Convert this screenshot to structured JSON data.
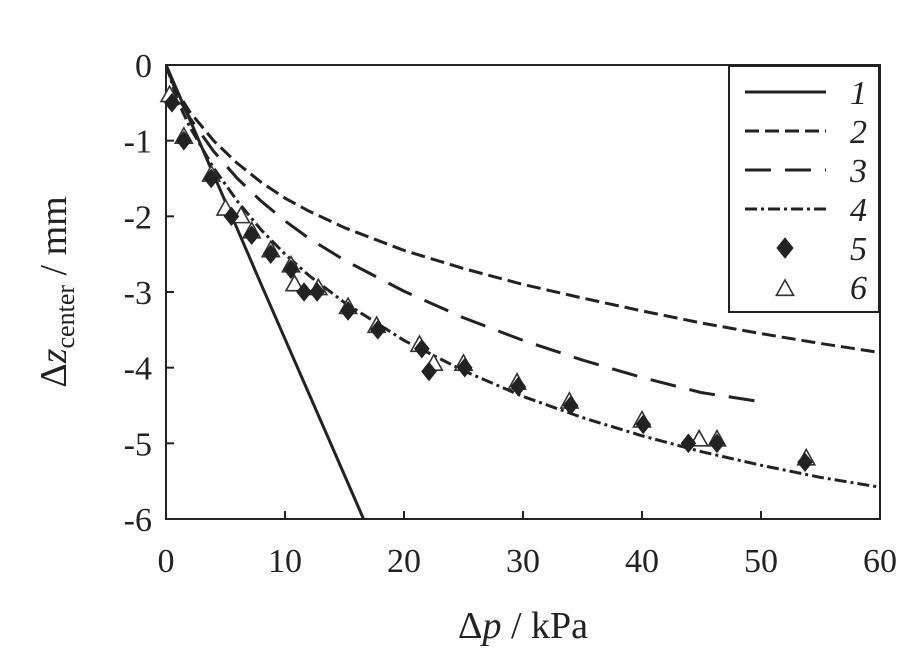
{
  "chart_data": {
    "type": "line",
    "xlabel": {
      "delta": "Δ",
      "var": "p",
      "unit": " / kPa"
    },
    "ylabel": {
      "delta": "Δ",
      "var": "z",
      "sub": "center",
      "unit": " / mm"
    },
    "xlim": [
      0,
      60
    ],
    "ylim": [
      -6,
      0
    ],
    "xticks": [
      "0",
      "10",
      "20",
      "30",
      "40",
      "50",
      "60"
    ],
    "yticks": [
      "0",
      "-1",
      "-2",
      "-3",
      "-4",
      "-5",
      "-6"
    ],
    "xtick_values": [
      0,
      10,
      20,
      30,
      40,
      50,
      60
    ],
    "ytick_values": [
      0,
      -1,
      -2,
      -3,
      -4,
      -5,
      -6
    ],
    "grid": false,
    "legend_position": "top-right",
    "series": [
      {
        "name": "1",
        "kind": "line",
        "dash": "solid",
        "x": [
          0,
          2,
          4,
          6,
          8,
          10,
          12,
          14,
          16.6
        ],
        "y": [
          0,
          -0.72,
          -1.45,
          -2.17,
          -2.9,
          -3.62,
          -4.34,
          -5.06,
          -6.0
        ]
      },
      {
        "name": "2",
        "kind": "line",
        "dash": "short-dash",
        "x": [
          0,
          1,
          2,
          4,
          6,
          8,
          10,
          12,
          15,
          20,
          25,
          30,
          35,
          40,
          45,
          50,
          55,
          60
        ],
        "y": [
          0,
          -0.37,
          -0.62,
          -1.0,
          -1.3,
          -1.55,
          -1.76,
          -1.93,
          -2.15,
          -2.45,
          -2.69,
          -2.9,
          -3.08,
          -3.25,
          -3.41,
          -3.55,
          -3.68,
          -3.8
        ]
      },
      {
        "name": "3",
        "kind": "line",
        "dash": "long-dash",
        "x": [
          0,
          1,
          2,
          4,
          6,
          8,
          10,
          12,
          15,
          20,
          25,
          30,
          35,
          40,
          45,
          50
        ],
        "y": [
          0,
          -0.42,
          -0.7,
          -1.14,
          -1.5,
          -1.8,
          -2.06,
          -2.29,
          -2.58,
          -2.99,
          -3.34,
          -3.64,
          -3.9,
          -4.13,
          -4.33,
          -4.45
        ]
      },
      {
        "name": "4",
        "kind": "line",
        "dash": "dash-dot",
        "x": [
          0,
          1,
          2,
          4,
          6,
          8,
          10,
          12,
          15,
          20,
          25,
          30,
          35,
          40,
          45,
          50,
          55,
          60
        ],
        "y": [
          0,
          -0.48,
          -0.82,
          -1.36,
          -1.8,
          -2.18,
          -2.5,
          -2.78,
          -3.14,
          -3.64,
          -4.04,
          -4.38,
          -4.66,
          -4.9,
          -5.11,
          -5.29,
          -5.45,
          -5.58
        ]
      },
      {
        "name": "5",
        "kind": "marker",
        "marker": "filled-diamond",
        "x": [
          0.5,
          1.5,
          3.8,
          5.5,
          7.2,
          8.8,
          10.5,
          11.6,
          12.7,
          15.3,
          17.8,
          21.5,
          22.1,
          25.1,
          29.6,
          34.0,
          40.1,
          43.9,
          46.3,
          53.7
        ],
        "y": [
          -0.5,
          -1.0,
          -1.5,
          -2.0,
          -2.25,
          -2.5,
          -2.7,
          -3.0,
          -3.0,
          -3.25,
          -3.5,
          -3.75,
          -4.05,
          -4.0,
          -4.25,
          -4.5,
          -4.75,
          -5.0,
          -5.0,
          -5.25
        ]
      },
      {
        "name": "6",
        "kind": "marker",
        "marker": "open-triangle",
        "x": [
          0.3,
          1.5,
          3.8,
          5.0,
          6.3,
          7.2,
          8.8,
          10.5,
          10.8,
          12.8,
          15.3,
          17.7,
          21.3,
          22.5,
          25.0,
          29.5,
          33.9,
          40.0,
          44.8,
          46.3,
          53.8
        ],
        "y": [
          -0.4,
          -0.95,
          -1.45,
          -1.9,
          -2.0,
          -2.2,
          -2.45,
          -2.65,
          -2.9,
          -2.95,
          -3.2,
          -3.45,
          -3.7,
          -3.95,
          -3.95,
          -4.2,
          -4.45,
          -4.7,
          -4.95,
          -4.95,
          -5.2
        ]
      }
    ]
  }
}
